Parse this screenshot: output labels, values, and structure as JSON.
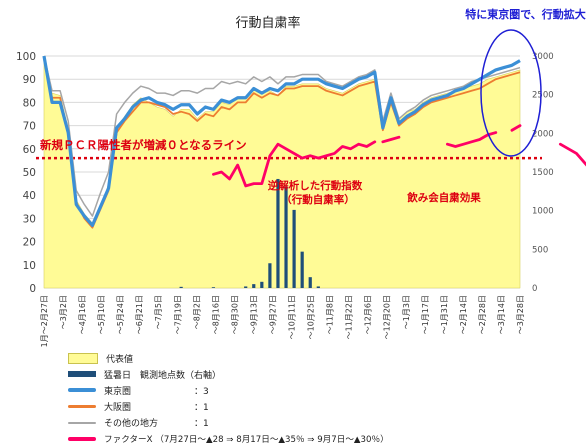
{
  "chart_data": {
    "type": "line",
    "title": "行動自粛率",
    "x_tick_labels": [
      "1月～2月27日",
      "～3月2日",
      "～4月16日",
      "～5月10日",
      "～5月24日",
      "～6月21日",
      "～7月5日",
      "～7月19日",
      "～8月2日",
      "～8月16日",
      "～8月30日",
      "～9月13日",
      "～9月27日",
      "～10月11日",
      "～10月25日",
      "～11月8日",
      "～11月22日",
      "～12月6日",
      "～12月20日",
      "～1月3日",
      "～1月17日",
      "～1月31日",
      "～2月14日",
      "～2月28日",
      "～3月14日",
      "～3月28日"
    ],
    "y_left": {
      "range": [
        0,
        100
      ],
      "ticks": [
        0,
        10,
        20,
        30,
        40,
        50,
        60,
        70,
        80,
        90,
        100
      ]
    },
    "y_right": {
      "range": [
        0,
        3000
      ],
      "ticks": [
        0,
        500,
        1000,
        1500,
        2000,
        2500,
        3000
      ]
    },
    "series": [
      {
        "name": "代表値",
        "type": "area",
        "color": "#fffb96",
        "values": [
          100,
          84,
          83,
          69,
          38,
          32,
          28,
          34,
          45,
          69,
          74,
          79,
          82,
          80,
          78,
          77,
          74,
          77,
          77,
          73,
          76,
          76,
          80,
          79,
          82,
          82,
          86,
          84,
          85,
          83,
          87,
          87,
          88,
          88,
          88,
          86,
          85,
          84,
          86,
          88,
          89,
          90,
          71,
          82,
          73,
          76,
          77,
          80,
          82,
          83,
          84,
          85,
          86,
          87,
          88,
          90,
          91,
          92,
          93,
          94
        ]
      },
      {
        "name": "東京圏",
        "weight": "3",
        "color": "#3b8fd6",
        "values": [
          100,
          80,
          80,
          67,
          36,
          31,
          27,
          35,
          43,
          69,
          73,
          78,
          81,
          82,
          80,
          79,
          77,
          79,
          79,
          75,
          78,
          77,
          81,
          80,
          82,
          82,
          86,
          84,
          86,
          85,
          88,
          88,
          90,
          90,
          90,
          88,
          87,
          86,
          88,
          90,
          91,
          93,
          69,
          82,
          71,
          74,
          76,
          79,
          81,
          82,
          83,
          85,
          86,
          88,
          90,
          92,
          94,
          95,
          96,
          98
        ]
      },
      {
        "name": "大阪圏",
        "weight": "1",
        "color": "#ed7d31",
        "values": [
          99,
          82,
          82,
          66,
          37,
          30,
          26,
          34,
          42,
          67,
          72,
          76,
          80,
          80,
          79,
          78,
          75,
          76,
          75,
          72,
          75,
          74,
          78,
          77,
          80,
          80,
          84,
          82,
          84,
          83,
          86,
          86,
          87,
          87,
          87,
          85,
          84,
          83,
          85,
          87,
          88,
          89,
          68,
          80,
          70,
          73,
          75,
          78,
          80,
          81,
          82,
          83,
          84,
          85,
          86,
          88,
          90,
          91,
          92,
          93
        ]
      },
      {
        "name": "その他の地方",
        "weight": "1",
        "color": "#a6a6a6",
        "values": [
          100,
          85,
          85,
          72,
          42,
          36,
          31,
          41,
          50,
          75,
          80,
          84,
          87,
          86,
          84,
          84,
          83,
          85,
          85,
          84,
          86,
          86,
          89,
          88,
          89,
          88,
          91,
          89,
          91,
          88,
          91,
          91,
          92,
          92,
          92,
          89,
          88,
          87,
          89,
          91,
          92,
          94,
          72,
          84,
          73,
          76,
          78,
          81,
          83,
          84,
          85,
          86,
          87,
          89,
          90,
          91,
          92,
          93,
          94,
          95
        ]
      },
      {
        "name": "ファクターX",
        "color": "#ff0066",
        "segments": [
          [
            [
              21,
              49
            ],
            [
              22,
              50
            ],
            [
              23,
              47
            ],
            [
              24,
              53
            ],
            [
              25,
              44
            ],
            [
              26,
              45
            ],
            [
              27,
              45
            ],
            [
              28,
              57
            ],
            [
              29,
              62
            ],
            [
              30,
              60
            ],
            [
              31,
              58
            ],
            [
              32,
              56
            ],
            [
              33,
              57
            ],
            [
              34,
              56
            ],
            [
              35,
              57
            ],
            [
              36,
              58
            ],
            [
              37,
              61
            ],
            [
              38,
              60
            ],
            [
              39,
              62
            ],
            [
              40,
              61
            ],
            [
              41,
              63
            ]
          ],
          [
            [
              42,
              63
            ],
            [
              43,
              64
            ],
            [
              44,
              65
            ]
          ],
          [
            [
              50,
              62
            ],
            [
              51,
              61
            ],
            [
              52,
              62
            ],
            [
              53,
              63
            ],
            [
              54,
              64
            ],
            [
              55,
              66
            ],
            [
              56,
              67
            ]
          ],
          [
            [
              58,
              68
            ],
            [
              59,
              70
            ]
          ],
          [
            [
              64,
              62
            ],
            [
              65,
              60
            ],
            [
              66,
              58
            ],
            [
              67,
              54
            ],
            [
              68,
              50
            ],
            [
              69,
              47
            ]
          ],
          [
            [
              69,
              47
            ],
            [
              71,
              44
            ],
            [
              73,
              44
            ],
            [
              76,
              44
            ],
            [
              79,
              44
            ],
            [
              80,
              44
            ],
            [
              81,
              53
            ]
          ],
          [
            [
              84,
              62
            ],
            [
              85,
              63
            ],
            [
              86,
              66
            ],
            [
              87,
              67
            ],
            [
              88,
              69
            ],
            [
              89,
              70
            ],
            [
              90,
              70
            ],
            [
              91,
              71
            ],
            [
              92,
              73
            ],
            [
              93,
              74
            ]
          ]
        ]
      },
      {
        "name": "猛暑日 観測地点数（右軸）",
        "type": "bar",
        "axis": "right",
        "color": "#1f4e79",
        "values": [
          [
            17,
            15
          ],
          [
            21,
            10
          ],
          [
            25,
            20
          ],
          [
            26,
            50
          ],
          [
            27,
            80
          ],
          [
            28,
            320
          ],
          [
            29,
            1410
          ],
          [
            30,
            1310
          ],
          [
            31,
            1010
          ],
          [
            32,
            470
          ],
          [
            33,
            140
          ],
          [
            34,
            20
          ]
        ]
      }
    ],
    "threshold_line": {
      "value": 56,
      "color": "#dd0011"
    }
  },
  "annotations": {
    "threshold": "新規ＰＣＲ陽性者が増減０となるライン",
    "factor_x_line1": "逆解析した行動指数",
    "factor_x_line2": "（行動自粛率）",
    "nomikai": "飲み会自粛効果",
    "tokyo_note": "特に東京圏で、行動拡大が顕著"
  },
  "legend": {
    "items": [
      {
        "name": "代表値",
        "weight": ""
      },
      {
        "name": "猛暑日　観測地点数（右軸）",
        "weight": ""
      },
      {
        "name": "東京圏",
        "weight": "：3"
      },
      {
        "name": "大阪圏",
        "weight": "：1"
      },
      {
        "name": "その他の地方",
        "weight": "：1"
      },
      {
        "name": "ファクターX （7月27日～▲28 ⇒ 8月17日～▲35％ ⇒ 9月7日～▲30％）",
        "weight": ""
      }
    ]
  }
}
